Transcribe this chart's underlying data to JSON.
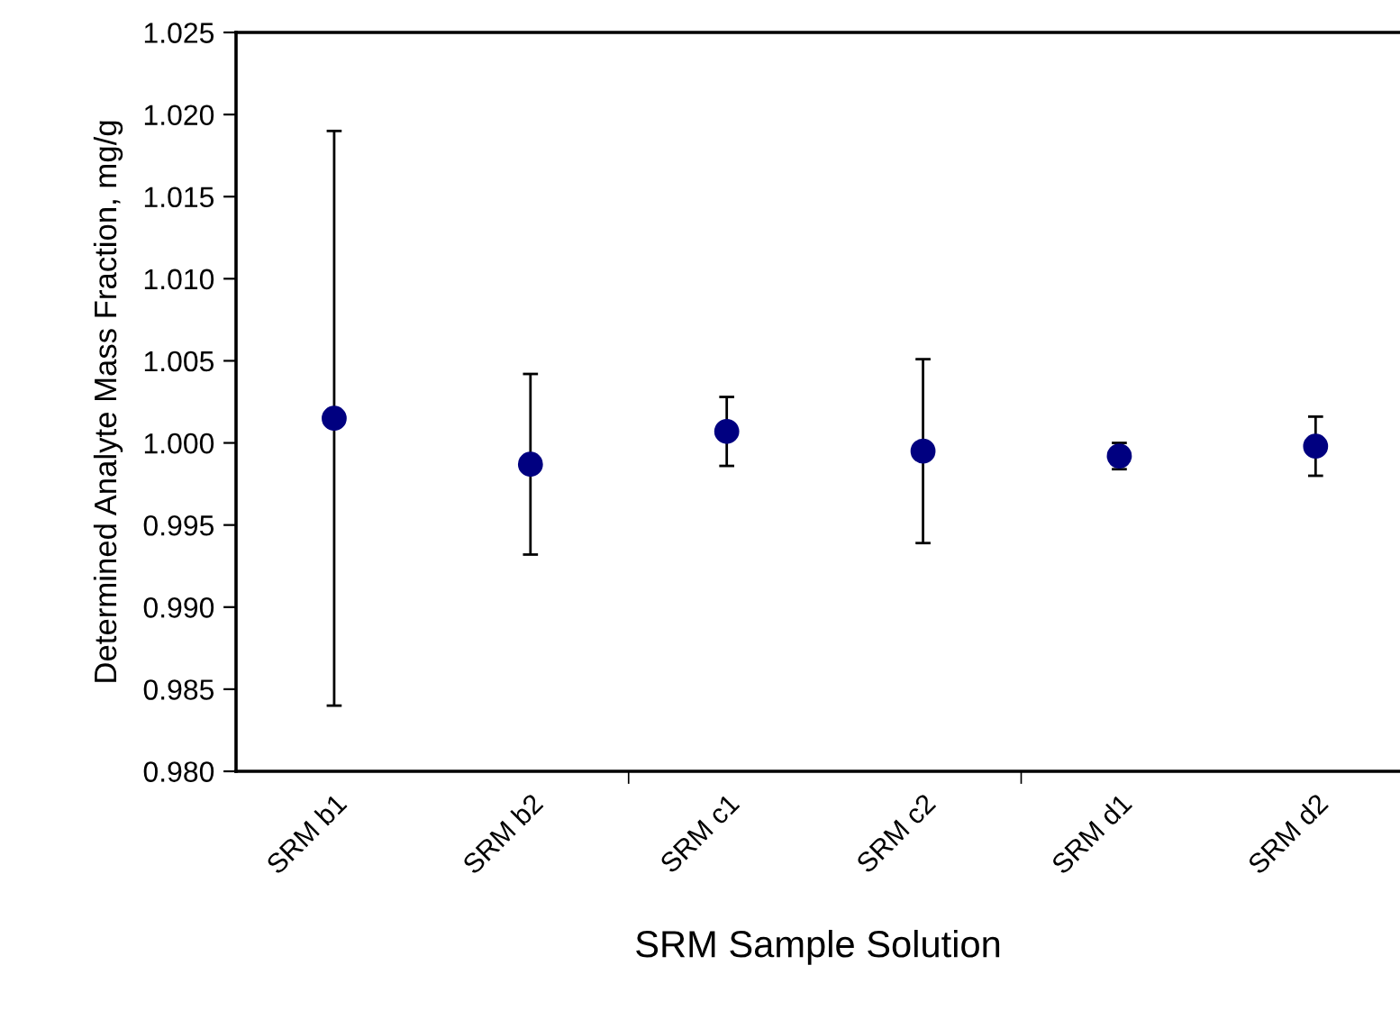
{
  "chart_data": {
    "type": "scatter",
    "xlabel": "SRM Sample Solution",
    "ylabel": "Determined Analyte Mass Fraction, mg/g",
    "categories": [
      "SRM b1",
      "SRM b2",
      "SRM c1",
      "SRM c2",
      "SRM d1",
      "SRM d2"
    ],
    "series": [
      {
        "color": "#000080",
        "values": [
          1.0015,
          0.9987,
          1.0007,
          0.9995,
          0.9992,
          0.9998
        ],
        "errors": [
          0.0175,
          0.0055,
          0.0021,
          0.0056,
          0.0008,
          0.0018
        ]
      }
    ],
    "ylim": [
      0.98,
      1.025
    ],
    "yticks": [
      {
        "value": 0.98,
        "label": "0.980"
      },
      {
        "value": 0.985,
        "label": "0.985"
      },
      {
        "value": 0.99,
        "label": "0.990"
      },
      {
        "value": 0.995,
        "label": "0.995"
      },
      {
        "value": 1.0,
        "label": "1.000"
      },
      {
        "value": 1.005,
        "label": "1.005"
      },
      {
        "value": 1.01,
        "label": "1.010"
      },
      {
        "value": 1.015,
        "label": "1.015"
      },
      {
        "value": 1.02,
        "label": "1.020"
      },
      {
        "value": 1.025,
        "label": "1.025"
      }
    ],
    "marker": "circle",
    "grid": false,
    "legend": false
  }
}
